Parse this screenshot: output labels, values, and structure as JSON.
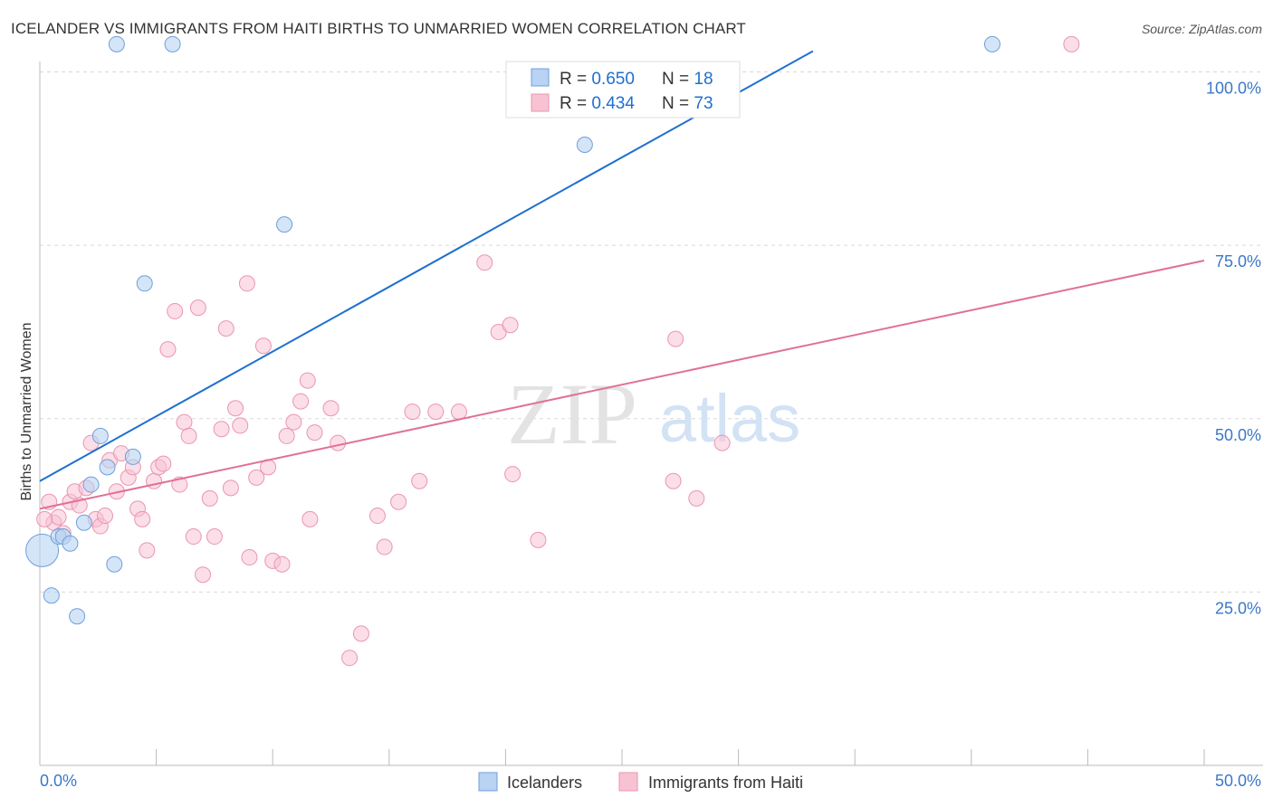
{
  "title": "ICELANDER VS IMMIGRANTS FROM HAITI BIRTHS TO UNMARRIED WOMEN CORRELATION CHART",
  "source": "Source: ZipAtlas.com",
  "watermark": {
    "zip": "ZIP",
    "atlas": "atlas"
  },
  "colors": {
    "blue": "#1f6fd0",
    "blue_fill": "#b8d3f3",
    "blue_stroke": "#6f9fd8",
    "pink": "#e0709a",
    "pink_fill": "#f7c3d3",
    "pink_stroke": "#ea95b2",
    "axis_text": "#3a78c8",
    "grid": "#d9d9d9"
  },
  "legend": {
    "rows": [
      {
        "r_label": "R = ",
        "r_value": "0.650",
        "n_label": "N = ",
        "n_value": "18"
      },
      {
        "r_label": "R = ",
        "r_value": "0.434",
        "n_label": "N = ",
        "n_value": "73"
      }
    ]
  },
  "chart_data": {
    "type": "scatter",
    "title": "ICELANDER VS IMMIGRANTS FROM HAITI BIRTHS TO UNMARRIED WOMEN CORRELATION CHART",
    "xlabel": "",
    "ylabel": "Births to Unmarried Women",
    "xlim": [
      0,
      50
    ],
    "ylim": [
      0,
      105
    ],
    "x_tick_labels": [
      "0.0%",
      "50.0%"
    ],
    "y_ticks": [
      25,
      50,
      75,
      100
    ],
    "y_tick_labels": [
      "25.0%",
      "50.0%",
      "75.0%",
      "100.0%"
    ],
    "grid": true,
    "legend_position": "bottom",
    "series": [
      {
        "name": "Icelanders",
        "color": "#b8d3f3",
        "r": 0.65,
        "n": 18,
        "trend": {
          "x": [
            0,
            33.2
          ],
          "y": [
            41.0,
            103.0
          ]
        },
        "points": [
          {
            "x": 0.1,
            "y": 31.0,
            "big": true
          },
          {
            "x": 0.5,
            "y": 24.5
          },
          {
            "x": 0.8,
            "y": 33.0
          },
          {
            "x": 1.0,
            "y": 33.0
          },
          {
            "x": 1.3,
            "y": 32.0
          },
          {
            "x": 1.6,
            "y": 21.5
          },
          {
            "x": 1.9,
            "y": 35.0
          },
          {
            "x": 2.2,
            "y": 40.5
          },
          {
            "x": 2.6,
            "y": 47.5
          },
          {
            "x": 2.9,
            "y": 43.0
          },
          {
            "x": 3.2,
            "y": 29.0
          },
          {
            "x": 4.0,
            "y": 44.5
          },
          {
            "x": 4.5,
            "y": 69.5
          },
          {
            "x": 3.3,
            "y": 104.0
          },
          {
            "x": 5.7,
            "y": 104.0
          },
          {
            "x": 10.5,
            "y": 78.0
          },
          {
            "x": 23.4,
            "y": 89.5
          },
          {
            "x": 40.9,
            "y": 104.0
          }
        ]
      },
      {
        "name": "Immigrants from Haiti",
        "color": "#f7c3d3",
        "r": 0.434,
        "n": 73,
        "trend": {
          "x": [
            0,
            50
          ],
          "y": [
            37.0,
            72.8
          ]
        },
        "points": [
          {
            "x": 0.4,
            "y": 38.0
          },
          {
            "x": 0.6,
            "y": 35.0
          },
          {
            "x": 0.8,
            "y": 35.8
          },
          {
            "x": 1.0,
            "y": 33.5
          },
          {
            "x": 1.3,
            "y": 38.0
          },
          {
            "x": 1.5,
            "y": 39.5
          },
          {
            "x": 1.7,
            "y": 37.5
          },
          {
            "x": 2.0,
            "y": 40.0
          },
          {
            "x": 2.2,
            "y": 46.5
          },
          {
            "x": 2.4,
            "y": 35.5
          },
          {
            "x": 2.6,
            "y": 34.5
          },
          {
            "x": 2.8,
            "y": 36.0
          },
          {
            "x": 3.0,
            "y": 44.0
          },
          {
            "x": 3.3,
            "y": 39.5
          },
          {
            "x": 3.5,
            "y": 45.0
          },
          {
            "x": 3.8,
            "y": 41.5
          },
          {
            "x": 4.0,
            "y": 43.0
          },
          {
            "x": 4.2,
            "y": 37.0
          },
          {
            "x": 4.4,
            "y": 35.5
          },
          {
            "x": 4.6,
            "y": 31.0
          },
          {
            "x": 4.9,
            "y": 41.0
          },
          {
            "x": 5.1,
            "y": 43.0
          },
          {
            "x": 5.3,
            "y": 43.5
          },
          {
            "x": 5.5,
            "y": 60.0
          },
          {
            "x": 5.8,
            "y": 65.5
          },
          {
            "x": 6.0,
            "y": 40.5
          },
          {
            "x": 6.2,
            "y": 49.5
          },
          {
            "x": 6.4,
            "y": 47.5
          },
          {
            "x": 6.6,
            "y": 33.0
          },
          {
            "x": 6.8,
            "y": 66.0
          },
          {
            "x": 7.0,
            "y": 27.5
          },
          {
            "x": 7.3,
            "y": 38.5
          },
          {
            "x": 7.5,
            "y": 33.0
          },
          {
            "x": 7.8,
            "y": 48.5
          },
          {
            "x": 8.0,
            "y": 63.0
          },
          {
            "x": 8.2,
            "y": 40.0
          },
          {
            "x": 8.4,
            "y": 51.5
          },
          {
            "x": 8.6,
            "y": 49.0
          },
          {
            "x": 8.9,
            "y": 69.5
          },
          {
            "x": 9.0,
            "y": 30.0
          },
          {
            "x": 9.3,
            "y": 41.5
          },
          {
            "x": 9.6,
            "y": 60.5
          },
          {
            "x": 9.8,
            "y": 43.0
          },
          {
            "x": 10.0,
            "y": 29.5
          },
          {
            "x": 10.4,
            "y": 29.0
          },
          {
            "x": 10.6,
            "y": 47.5
          },
          {
            "x": 10.9,
            "y": 49.5
          },
          {
            "x": 11.2,
            "y": 52.5
          },
          {
            "x": 11.5,
            "y": 55.5
          },
          {
            "x": 11.6,
            "y": 35.5
          },
          {
            "x": 11.8,
            "y": 48.0
          },
          {
            "x": 12.5,
            "y": 51.5
          },
          {
            "x": 12.8,
            "y": 46.5
          },
          {
            "x": 13.3,
            "y": 15.5
          },
          {
            "x": 13.8,
            "y": 19.0
          },
          {
            "x": 14.5,
            "y": 36.0
          },
          {
            "x": 14.8,
            "y": 31.5
          },
          {
            "x": 15.4,
            "y": 38.0
          },
          {
            "x": 16.0,
            "y": 51.0
          },
          {
            "x": 16.3,
            "y": 41.0
          },
          {
            "x": 17.0,
            "y": 51.0
          },
          {
            "x": 18.0,
            "y": 51.0
          },
          {
            "x": 19.1,
            "y": 72.5
          },
          {
            "x": 19.7,
            "y": 62.5
          },
          {
            "x": 20.2,
            "y": 63.5
          },
          {
            "x": 20.3,
            "y": 42.0
          },
          {
            "x": 21.4,
            "y": 32.5
          },
          {
            "x": 27.2,
            "y": 41.0
          },
          {
            "x": 27.3,
            "y": 61.5
          },
          {
            "x": 28.2,
            "y": 38.5
          },
          {
            "x": 29.3,
            "y": 46.5
          },
          {
            "x": 44.3,
            "y": 104.0
          },
          {
            "x": 0.2,
            "y": 35.5
          }
        ]
      }
    ]
  }
}
